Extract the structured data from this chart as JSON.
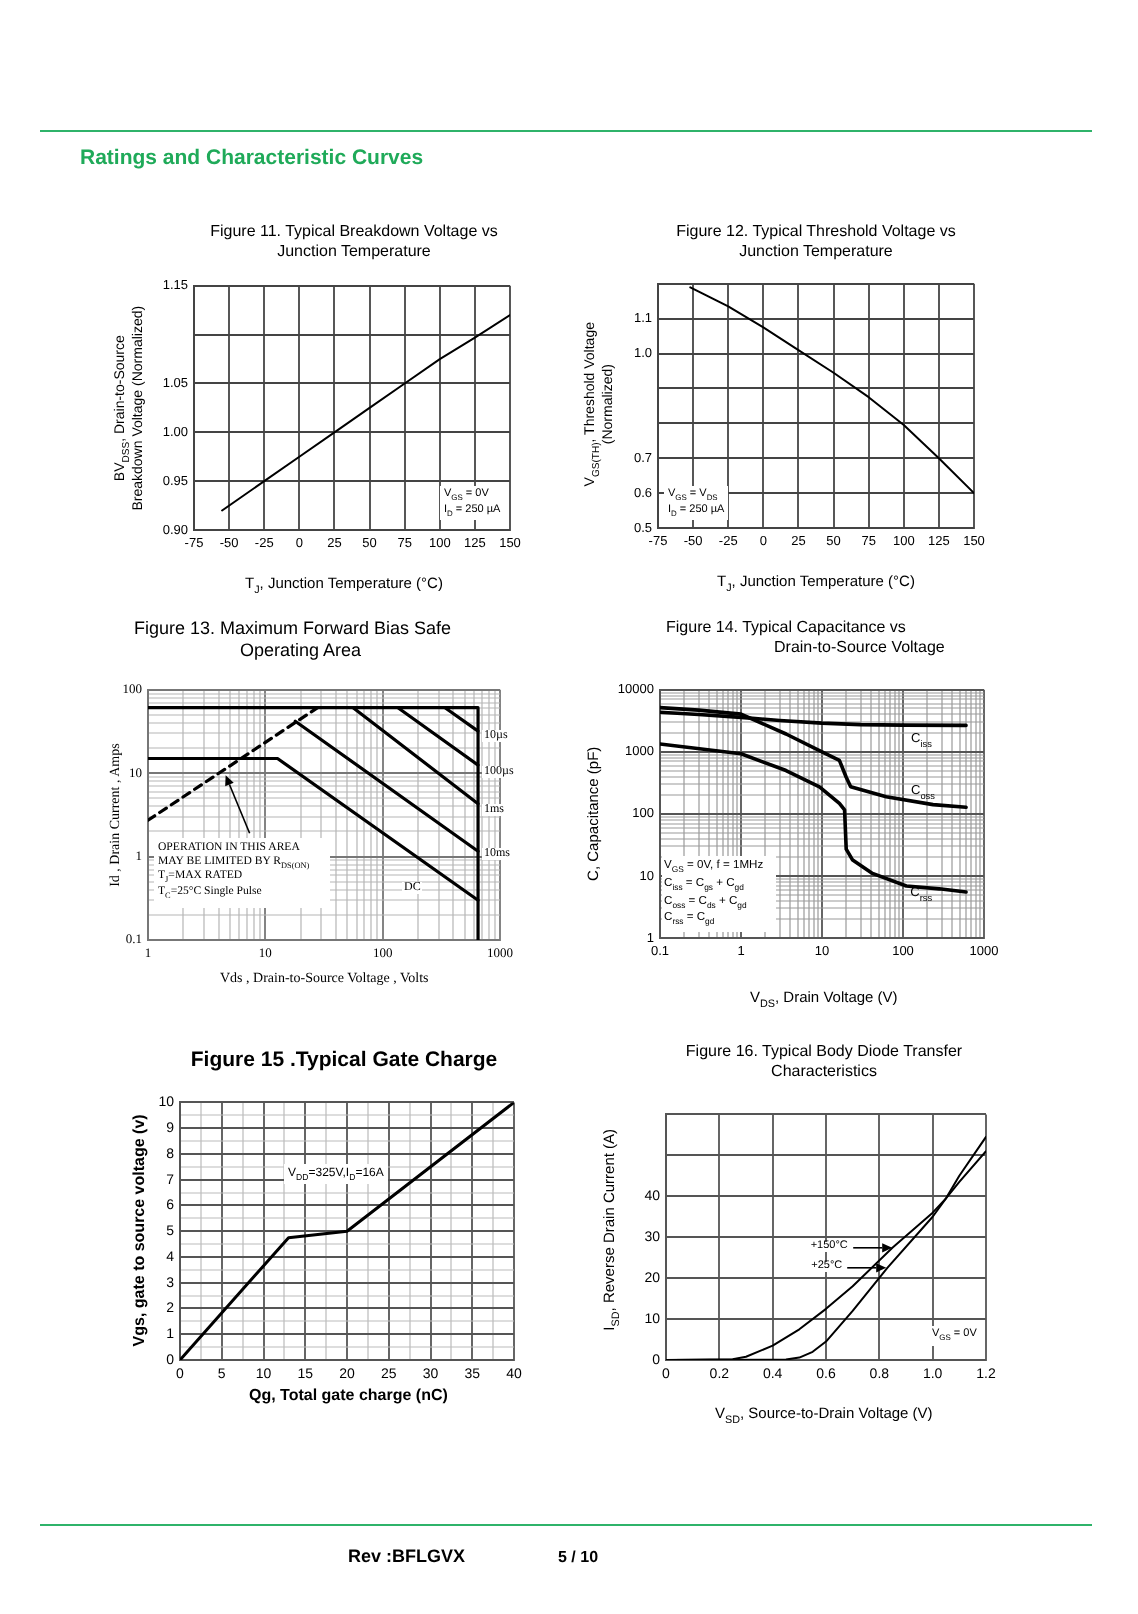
{
  "chart_data": [
    {
      "type": "other",
      "title": "Ratings and Characteristic Curves"
    },
    {
      "type": "line",
      "title": "Figure 11. Typical Breakdown Voltage vs Junction Temperature",
      "xlabel": "T$_{J}$, Junction Temperature (°C)",
      "ylabel": "BV$_{DSS}$, Drain-to-Source Breakdown Voltage (Normalized)",
      "annotations": [
        "V$_{GS}$ = 0V",
        "I$_{D}$ = 250 µA"
      ],
      "x": [
        -55,
        -25,
        0,
        25,
        50,
        75,
        100,
        125,
        150
      ],
      "series": [
        {
          "color": "#000000",
          "values": [
            0.92,
            0.95,
            0.975,
            1.0,
            1.025,
            1.05,
            1.075,
            1.097,
            1.12
          ]
        }
      ],
      "xlim": [
        -75,
        150
      ],
      "xticks": [
        -75,
        -50,
        -25,
        0,
        25,
        50,
        75,
        100,
        125,
        150
      ],
      "ylim": [
        0.9,
        1.15
      ],
      "yticks": [
        {
          "value": 0.9,
          "label": "0.90"
        },
        {
          "value": 0.95,
          "label": "0.95"
        },
        {
          "value": 1,
          "label": "1.00"
        },
        {
          "value": 1.05,
          "label": "1.05"
        },
        {
          "value": 1.1,
          "label": null
        },
        {
          "value": 1.15,
          "label": "1.15"
        }
      ],
      "grid": true
    },
    {
      "type": "line",
      "title": "Figure 12. Typical Threshold Voltage vs Junction Temperature",
      "xlabel": "T$_{J}$, Junction Temperature (°C)",
      "ylabel": "V$_{GS(TH)}$, Threshold Voltage (Normalized)",
      "annotations": [
        "V$_{GS}$ = V$_{DS}$",
        "I$_{D}$ = 250 µA"
      ],
      "x": [
        -52,
        -25,
        0,
        25,
        50,
        75,
        100,
        125,
        150
      ],
      "series": [
        {
          "color": "#000000",
          "values": [
            1.19,
            1.135,
            1.075,
            1.01,
            0.945,
            0.875,
            0.795,
            0.7,
            0.6
          ]
        }
      ],
      "xlim": [
        -75,
        150
      ],
      "xticks": [
        -75,
        -50,
        -25,
        0,
        25,
        50,
        75,
        100,
        125,
        150
      ],
      "ylim": [
        0.5,
        1.2
      ],
      "yticks": [
        0.5,
        0.6,
        0.7,
        {
          "value": 0.8,
          "label": null
        },
        {
          "value": 0.9,
          "label": null
        },
        {
          "value": 1,
          "label": "1.0"
        },
        1.1,
        {
          "value": 1.2,
          "label": null
        }
      ],
      "grid": true
    },
    {
      "type": "line",
      "title": "Figure 13. Maximum Forward Bias Safe Operating Area",
      "xlabel": "Vds , Drain-to-Source Voltage , Volts",
      "ylabel": "Id , Drain Current , Amps",
      "annotations": [
        "OPERATION IN THIS AREA",
        "MAY BE LIMITED BY R$_{DS(ON)}$",
        "T$_{J}$=MAX RATED",
        "T$_{C}$=25°C  Single Pulse"
      ],
      "series": [
        {
          "color": "#000000",
          "x": [
            1,
            650,
            650
          ],
          "values": [
            61,
            61,
            0.1
          ]
        },
        {
          "color": "#000000",
          "x": [
            1,
            27.9
          ],
          "values": [
            2.73,
            61
          ],
          "line_style": "dashed"
        },
        {
          "name": "10µs",
          "color": "#000000",
          "x": [
            340,
            650
          ],
          "values": [
            61,
            32
          ]
        },
        {
          "name": "100µs",
          "color": "#000000",
          "x": [
            135,
            650
          ],
          "values": [
            61,
            12.5
          ]
        },
        {
          "name": "1ms",
          "color": "#000000",
          "x": [
            56,
            650
          ],
          "values": [
            61,
            4.3
          ]
        },
        {
          "name": "10ms",
          "color": "#000000",
          "x": [
            18,
            650
          ],
          "values": [
            42,
            1.16
          ]
        },
        {
          "name": "DC",
          "color": "#000000",
          "x": [
            1,
            12.7,
            650
          ],
          "values": [
            15,
            15,
            0.3
          ]
        }
      ],
      "log": "xy",
      "xlim": [
        1,
        1000
      ],
      "xticks": [
        1,
        {
          "value": 2,
          "label": null
        },
        {
          "value": 3,
          "label": null
        },
        {
          "value": 4,
          "label": null
        },
        {
          "value": 5,
          "label": null
        },
        {
          "value": 6,
          "label": null
        },
        {
          "value": 7,
          "label": null
        },
        {
          "value": 8,
          "label": null
        },
        {
          "value": 9,
          "label": null
        },
        10,
        {
          "value": 20,
          "label": null
        },
        {
          "value": 30,
          "label": null
        },
        {
          "value": 40,
          "label": null
        },
        {
          "value": 50,
          "label": null
        },
        {
          "value": 60,
          "label": null
        },
        {
          "value": 70,
          "label": null
        },
        {
          "value": 80,
          "label": null
        },
        {
          "value": 90,
          "label": null
        },
        100,
        {
          "value": 200,
          "label": null
        },
        {
          "value": 300,
          "label": null
        },
        {
          "value": 400,
          "label": null
        },
        {
          "value": 500,
          "label": null
        },
        {
          "value": 600,
          "label": null
        },
        {
          "value": 700,
          "label": null
        },
        {
          "value": 800,
          "label": null
        },
        {
          "value": 900,
          "label": null
        },
        1000
      ],
      "ylim": [
        0.1,
        100
      ],
      "yticks": [
        0.1,
        {
          "value": 0.2,
          "label": null
        },
        {
          "value": 0.3,
          "label": null
        },
        {
          "value": 0.4,
          "label": null
        },
        {
          "value": 0.5,
          "label": null
        },
        {
          "value": 0.6,
          "label": null
        },
        {
          "value": 0.7,
          "label": null
        },
        {
          "value": 0.8,
          "label": null
        },
        {
          "value": 0.9,
          "label": null
        },
        1,
        {
          "value": 2,
          "label": null
        },
        {
          "value": 3,
          "label": null
        },
        {
          "value": 4,
          "label": null
        },
        {
          "value": 5,
          "label": null
        },
        {
          "value": 6,
          "label": null
        },
        {
          "value": 7,
          "label": null
        },
        {
          "value": 8,
          "label": null
        },
        {
          "value": 9,
          "label": null
        },
        10,
        {
          "value": 20,
          "label": null
        },
        {
          "value": 30,
          "label": null
        },
        {
          "value": 40,
          "label": null
        },
        {
          "value": 50,
          "label": null
        },
        {
          "value": 60,
          "label": null
        },
        {
          "value": 70,
          "label": null
        },
        {
          "value": 80,
          "label": null
        },
        {
          "value": 90,
          "label": null
        },
        100
      ],
      "grid": true
    },
    {
      "type": "line",
      "title": "Figure 14. Typical Capacitance vs Drain-to-Source Voltage",
      "xlabel": "V$_{DS}$, Drain Voltage (V)",
      "ylabel": "C, Capacitance (pF)",
      "annotations": [
        "V$_{GS}$ = 0V, f = 1MHz",
        "C$_{iss}$ = C$_{gs}$ + C$_{gd}$",
        "C$_{oss}$ = C$_{ds}$ + C$_{gd}$",
        "C$_{rss}$ = C$_{gd}$"
      ],
      "series": [
        {
          "name": "C$_{iss}$",
          "color": "#000000",
          "x": [
            0.1,
            0.3,
            1,
            3,
            10,
            30,
            100,
            600
          ],
          "values": [
            4350,
            4000,
            3600,
            3200,
            2900,
            2750,
            2700,
            2670
          ]
        },
        {
          "name": "C$_{oss}$",
          "color": "#000000",
          "x": [
            0.1,
            0.3,
            1,
            3.6,
            9.3,
            16.4,
            19.9,
            22.6,
            62,
            235,
            600
          ],
          "values": [
            5160,
            4700,
            4050,
            1940,
            1050,
            730,
            390,
            273,
            189,
            141,
            128
          ]
        },
        {
          "name": "C$_{rss}$",
          "color": "#000000",
          "x": [
            0.1,
            1,
            3.6,
            9.3,
            16.4,
            19,
            19.9,
            23.9,
            42,
            110,
            280,
            600
          ],
          "values": [
            1340,
            930,
            500,
            273,
            148,
            116,
            27,
            18,
            11,
            6.9,
            6.2,
            5.5
          ]
        }
      ],
      "log": "xy",
      "xlim": [
        0.1,
        1000
      ],
      "xticks": [
        0.1,
        {
          "value": 0.2,
          "label": null
        },
        {
          "value": 0.3,
          "label": null
        },
        {
          "value": 0.4,
          "label": null
        },
        {
          "value": 0.5,
          "label": null
        },
        {
          "value": 0.6,
          "label": null
        },
        {
          "value": 0.7,
          "label": null
        },
        {
          "value": 0.8,
          "label": null
        },
        {
          "value": 0.9,
          "label": null
        },
        1,
        {
          "value": 2,
          "label": null
        },
        {
          "value": 3,
          "label": null
        },
        {
          "value": 4,
          "label": null
        },
        {
          "value": 5,
          "label": null
        },
        {
          "value": 6,
          "label": null
        },
        {
          "value": 7,
          "label": null
        },
        {
          "value": 8,
          "label": null
        },
        {
          "value": 9,
          "label": null
        },
        10,
        {
          "value": 20,
          "label": null
        },
        {
          "value": 30,
          "label": null
        },
        {
          "value": 40,
          "label": null
        },
        {
          "value": 50,
          "label": null
        },
        {
          "value": 60,
          "label": null
        },
        {
          "value": 70,
          "label": null
        },
        {
          "value": 80,
          "label": null
        },
        {
          "value": 90,
          "label": null
        },
        100,
        {
          "value": 200,
          "label": null
        },
        {
          "value": 300,
          "label": null
        },
        {
          "value": 400,
          "label": null
        },
        {
          "value": 500,
          "label": null
        },
        {
          "value": 600,
          "label": null
        },
        {
          "value": 700,
          "label": null
        },
        {
          "value": 800,
          "label": null
        },
        {
          "value": 900,
          "label": null
        },
        1000
      ],
      "ylim": [
        1,
        10000
      ],
      "yticks": [
        1,
        {
          "value": 2,
          "label": null
        },
        {
          "value": 3,
          "label": null
        },
        {
          "value": 4,
          "label": null
        },
        {
          "value": 5,
          "label": null
        },
        {
          "value": 6,
          "label": null
        },
        {
          "value": 7,
          "label": null
        },
        {
          "value": 8,
          "label": null
        },
        {
          "value": 9,
          "label": null
        },
        10,
        {
          "value": 20,
          "label": null
        },
        {
          "value": 30,
          "label": null
        },
        {
          "value": 40,
          "label": null
        },
        {
          "value": 50,
          "label": null
        },
        {
          "value": 60,
          "label": null
        },
        {
          "value": 70,
          "label": null
        },
        {
          "value": 80,
          "label": null
        },
        {
          "value": 90,
          "label": null
        },
        100,
        {
          "value": 200,
          "label": null
        },
        {
          "value": 300,
          "label": null
        },
        {
          "value": 400,
          "label": null
        },
        {
          "value": 500,
          "label": null
        },
        {
          "value": 600,
          "label": null
        },
        {
          "value": 700,
          "label": null
        },
        {
          "value": 800,
          "label": null
        },
        {
          "value": 900,
          "label": null
        },
        1000,
        {
          "value": 2000,
          "label": null
        },
        {
          "value": 3000,
          "label": null
        },
        {
          "value": 4000,
          "label": null
        },
        {
          "value": 5000,
          "label": null
        },
        {
          "value": 6000,
          "label": null
        },
        {
          "value": 7000,
          "label": null
        },
        {
          "value": 8000,
          "label": null
        },
        {
          "value": 9000,
          "label": null
        },
        10000
      ],
      "grid": true
    },
    {
      "type": "line",
      "title": "Figure 15 .Typical Gate Charge",
      "xlabel": "Qg, Total gate charge (nC)",
      "ylabel": "Vgs, gate to source voltage (v)",
      "annotations": [
        "V$_{DD}$=325V,I$_{D}$=16A"
      ],
      "x": [
        0,
        13,
        20,
        40
      ],
      "series": [
        {
          "color": "#000000",
          "values": [
            0,
            4.75,
            5,
            10
          ]
        }
      ],
      "xlim": [
        0,
        40
      ],
      "xticks": [
        0,
        {
          "value": 2.5,
          "label": null
        },
        5,
        {
          "value": 7.5,
          "label": null
        },
        10,
        {
          "value": 12.5,
          "label": null
        },
        15,
        {
          "value": 17.5,
          "label": null
        },
        20,
        {
          "value": 22.5,
          "label": null
        },
        25,
        {
          "value": 27.5,
          "label": null
        },
        30,
        {
          "value": 32.5,
          "label": null
        },
        35,
        {
          "value": 37.5,
          "label": null
        },
        40
      ],
      "ylim": [
        0,
        10
      ],
      "yticks": [
        0,
        {
          "value": 0.5,
          "label": null
        },
        1,
        {
          "value": 1.5,
          "label": null
        },
        2,
        {
          "value": 2.5,
          "label": null
        },
        3,
        {
          "value": 3.5,
          "label": null
        },
        4,
        {
          "value": 4.5,
          "label": null
        },
        5,
        {
          "value": 5.5,
          "label": null
        },
        6,
        {
          "value": 6.5,
          "label": null
        },
        7,
        {
          "value": 7.5,
          "label": null
        },
        8,
        {
          "value": 8.5,
          "label": null
        },
        9,
        {
          "value": 9.5,
          "label": null
        },
        10
      ],
      "grid": true
    },
    {
      "type": "line",
      "title": "Figure 16. Typical Body Diode Transfer Characteristics",
      "xlabel": "V$_{SD}$, Source-to-Drain Voltage (V)",
      "ylabel": "I$_{SD}$, Reverse Drain Current (A)",
      "annotations": [
        "V$_{GS}$ = 0V"
      ],
      "series": [
        {
          "name": "+150°C",
          "color": "#000000",
          "x": [
            0,
            0.25,
            0.3,
            0.4,
            0.5,
            0.6,
            0.7,
            0.85,
            1.0,
            1.05,
            1.1,
            1.2
          ],
          "values": [
            0,
            0.2,
            0.8,
            3.5,
            7.5,
            12.5,
            18,
            27.5,
            36,
            39.5,
            43.5,
            51
          ]
        },
        {
          "name": "+25°C",
          "color": "#000000",
          "x": [
            0,
            0.45,
            0.5,
            0.55,
            0.6,
            0.7,
            0.83,
            1.0,
            1.05,
            1.1,
            1.2
          ],
          "values": [
            0,
            0.1,
            0.6,
            2,
            4.5,
            12,
            22.5,
            35,
            39.5,
            45,
            54.5
          ]
        }
      ],
      "xlim": [
        0,
        1.2
      ],
      "xticks": [
        0,
        0.2,
        0.4,
        0.6,
        0.8,
        {
          "value": 1,
          "label": "1.0"
        },
        1.2
      ],
      "ylim": [
        0,
        60
      ],
      "yticks": [
        0,
        10,
        20,
        30,
        40,
        {
          "value": 50,
          "label": null
        },
        {
          "value": 60,
          "label": null
        }
      ],
      "grid": true,
      "legend": "center"
    },
    {
      "type": "other",
      "annotations": [
        "Rev :BFLGVX",
        "5 / 10"
      ]
    }
  ]
}
